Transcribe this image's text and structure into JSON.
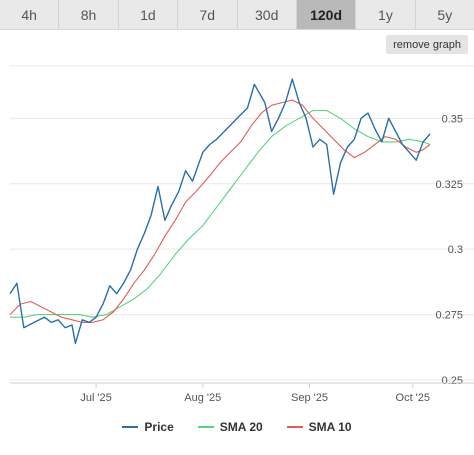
{
  "tabs": [
    {
      "label": "4h",
      "active": false
    },
    {
      "label": "8h",
      "active": false
    },
    {
      "label": "1d",
      "active": false
    },
    {
      "label": "7d",
      "active": false
    },
    {
      "label": "30d",
      "active": false
    },
    {
      "label": "120d",
      "active": true
    },
    {
      "label": "1y",
      "active": false
    },
    {
      "label": "5y",
      "active": false
    }
  ],
  "remove_graph_label": "remove graph",
  "chart_data": {
    "type": "line",
    "x_tick_labels": [
      "Jul '25",
      "Aug '25",
      "Sep '25",
      "Oct '25"
    ],
    "y_ticks": [
      0.25,
      0.275,
      0.3,
      0.325,
      0.35
    ],
    "y_tick_labels": [
      "0.25",
      "0.275",
      "0.3",
      "0.325",
      "0.35"
    ],
    "ylim": [
      0.25,
      0.37
    ],
    "xlim": [
      "2025-06-06",
      "2025-10-06"
    ],
    "grid": "horizontal",
    "legend_position": "bottom",
    "series": [
      {
        "name": "Price",
        "color": "#2b6ea8",
        "points": [
          [
            "2025-06-06",
            0.283
          ],
          [
            "2025-06-08",
            0.287
          ],
          [
            "2025-06-10",
            0.27
          ],
          [
            "2025-06-13",
            0.272
          ],
          [
            "2025-06-16",
            0.274
          ],
          [
            "2025-06-18",
            0.272
          ],
          [
            "2025-06-20",
            0.273
          ],
          [
            "2025-06-22",
            0.27
          ],
          [
            "2025-06-24",
            0.271
          ],
          [
            "2025-06-25",
            0.264
          ],
          [
            "2025-06-27",
            0.273
          ],
          [
            "2025-06-29",
            0.272
          ],
          [
            "2025-07-01",
            0.274
          ],
          [
            "2025-07-03",
            0.279
          ],
          [
            "2025-07-05",
            0.286
          ],
          [
            "2025-07-07",
            0.283
          ],
          [
            "2025-07-09",
            0.287
          ],
          [
            "2025-07-11",
            0.292
          ],
          [
            "2025-07-13",
            0.3
          ],
          [
            "2025-07-15",
            0.306
          ],
          [
            "2025-07-17",
            0.313
          ],
          [
            "2025-07-19",
            0.324
          ],
          [
            "2025-07-21",
            0.311
          ],
          [
            "2025-07-23",
            0.317
          ],
          [
            "2025-07-25",
            0.322
          ],
          [
            "2025-07-27",
            0.33
          ],
          [
            "2025-07-29",
            0.326
          ],
          [
            "2025-08-01",
            0.337
          ],
          [
            "2025-08-03",
            0.34
          ],
          [
            "2025-08-05",
            0.342
          ],
          [
            "2025-08-08",
            0.346
          ],
          [
            "2025-08-11",
            0.35
          ],
          [
            "2025-08-14",
            0.354
          ],
          [
            "2025-08-16",
            0.363
          ],
          [
            "2025-08-19",
            0.356
          ],
          [
            "2025-08-21",
            0.345
          ],
          [
            "2025-08-23",
            0.35
          ],
          [
            "2025-08-25",
            0.356
          ],
          [
            "2025-08-27",
            0.365
          ],
          [
            "2025-08-29",
            0.356
          ],
          [
            "2025-08-31",
            0.35
          ],
          [
            "2025-09-02",
            0.339
          ],
          [
            "2025-09-04",
            0.342
          ],
          [
            "2025-09-06",
            0.34
          ],
          [
            "2025-09-08",
            0.321
          ],
          [
            "2025-09-10",
            0.333
          ],
          [
            "2025-09-12",
            0.339
          ],
          [
            "2025-09-14",
            0.342
          ],
          [
            "2025-09-16",
            0.35
          ],
          [
            "2025-09-18",
            0.352
          ],
          [
            "2025-09-20",
            0.346
          ],
          [
            "2025-09-22",
            0.341
          ],
          [
            "2025-09-24",
            0.35
          ],
          [
            "2025-09-26",
            0.345
          ],
          [
            "2025-09-28",
            0.34
          ],
          [
            "2025-09-30",
            0.337
          ],
          [
            "2025-10-02",
            0.334
          ],
          [
            "2025-10-04",
            0.341
          ],
          [
            "2025-10-06",
            0.344
          ]
        ]
      },
      {
        "name": "SMA 20",
        "color": "#5cd17f",
        "points": [
          [
            "2025-06-06",
            0.274
          ],
          [
            "2025-06-10",
            0.274
          ],
          [
            "2025-06-14",
            0.275
          ],
          [
            "2025-06-18",
            0.275
          ],
          [
            "2025-06-22",
            0.275
          ],
          [
            "2025-06-26",
            0.275
          ],
          [
            "2025-06-30",
            0.274
          ],
          [
            "2025-07-04",
            0.275
          ],
          [
            "2025-07-08",
            0.278
          ],
          [
            "2025-07-12",
            0.281
          ],
          [
            "2025-07-16",
            0.285
          ],
          [
            "2025-07-20",
            0.291
          ],
          [
            "2025-07-24",
            0.298
          ],
          [
            "2025-07-28",
            0.304
          ],
          [
            "2025-08-01",
            0.309
          ],
          [
            "2025-08-05",
            0.316
          ],
          [
            "2025-08-09",
            0.323
          ],
          [
            "2025-08-13",
            0.33
          ],
          [
            "2025-08-17",
            0.337
          ],
          [
            "2025-08-21",
            0.343
          ],
          [
            "2025-08-25",
            0.347
          ],
          [
            "2025-08-29",
            0.35
          ],
          [
            "2025-09-02",
            0.353
          ],
          [
            "2025-09-06",
            0.353
          ],
          [
            "2025-09-10",
            0.35
          ],
          [
            "2025-09-14",
            0.346
          ],
          [
            "2025-09-18",
            0.343
          ],
          [
            "2025-09-22",
            0.341
          ],
          [
            "2025-09-26",
            0.341
          ],
          [
            "2025-09-30",
            0.342
          ],
          [
            "2025-10-04",
            0.341
          ],
          [
            "2025-10-06",
            0.34
          ]
        ]
      },
      {
        "name": "SMA 10",
        "color": "#e25c5c",
        "points": [
          [
            "2025-06-06",
            0.275
          ],
          [
            "2025-06-09",
            0.279
          ],
          [
            "2025-06-12",
            0.28
          ],
          [
            "2025-06-15",
            0.278
          ],
          [
            "2025-06-18",
            0.276
          ],
          [
            "2025-06-21",
            0.274
          ],
          [
            "2025-06-24",
            0.273
          ],
          [
            "2025-06-27",
            0.272
          ],
          [
            "2025-06-30",
            0.272
          ],
          [
            "2025-07-03",
            0.273
          ],
          [
            "2025-07-06",
            0.276
          ],
          [
            "2025-07-09",
            0.281
          ],
          [
            "2025-07-12",
            0.287
          ],
          [
            "2025-07-15",
            0.292
          ],
          [
            "2025-07-18",
            0.298
          ],
          [
            "2025-07-21",
            0.305
          ],
          [
            "2025-07-24",
            0.311
          ],
          [
            "2025-07-27",
            0.318
          ],
          [
            "2025-07-30",
            0.322
          ],
          [
            "2025-08-03",
            0.328
          ],
          [
            "2025-08-06",
            0.333
          ],
          [
            "2025-08-09",
            0.337
          ],
          [
            "2025-08-12",
            0.341
          ],
          [
            "2025-08-15",
            0.347
          ],
          [
            "2025-08-18",
            0.352
          ],
          [
            "2025-08-21",
            0.355
          ],
          [
            "2025-08-24",
            0.356
          ],
          [
            "2025-08-27",
            0.357
          ],
          [
            "2025-08-30",
            0.355
          ],
          [
            "2025-09-02",
            0.35
          ],
          [
            "2025-09-05",
            0.346
          ],
          [
            "2025-09-08",
            0.342
          ],
          [
            "2025-09-11",
            0.338
          ],
          [
            "2025-09-14",
            0.335
          ],
          [
            "2025-09-17",
            0.337
          ],
          [
            "2025-09-20",
            0.34
          ],
          [
            "2025-09-23",
            0.343
          ],
          [
            "2025-09-26",
            0.342
          ],
          [
            "2025-09-29",
            0.339
          ],
          [
            "2025-10-02",
            0.337
          ],
          [
            "2025-10-04",
            0.338
          ],
          [
            "2025-10-06",
            0.34
          ]
        ]
      }
    ]
  }
}
